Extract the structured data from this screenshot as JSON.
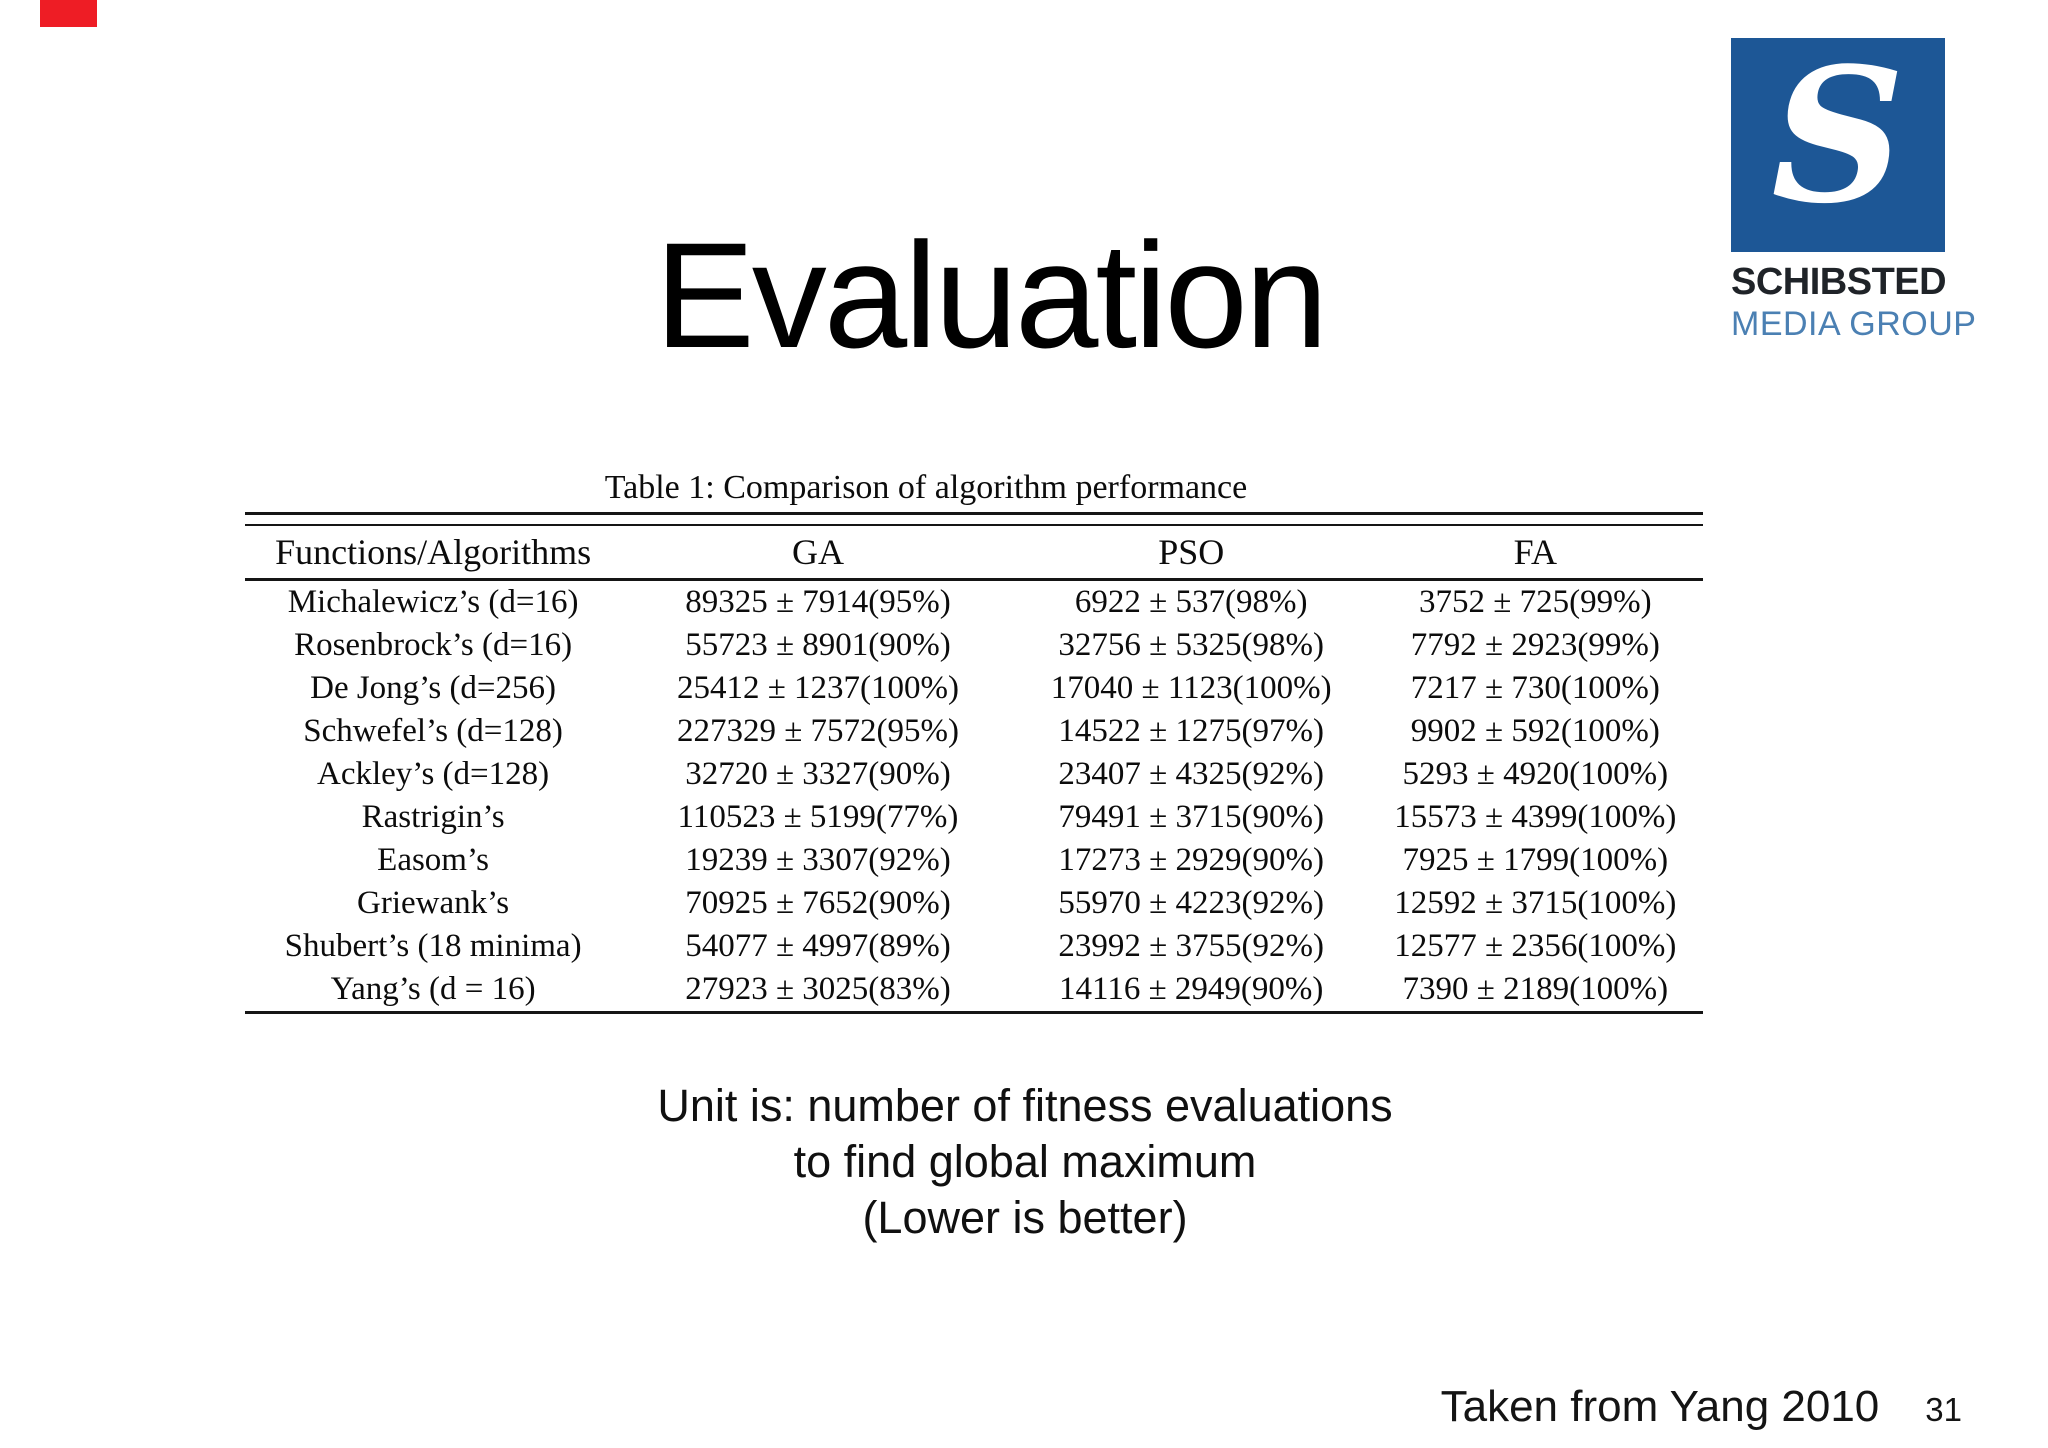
{
  "slide": {
    "title": "Evaluation",
    "attribution": "Taken from Yang 2010",
    "page_number": "31"
  },
  "marker": {
    "color": "#ee1d25"
  },
  "logo": {
    "monogram": "S",
    "name": "SCHIBSTED",
    "subname": "MEDIA GROUP",
    "square_color": "#1d5796",
    "name_color": "#1f2328",
    "subname_color": "#4b80b3"
  },
  "table": {
    "caption": "Table 1: Comparison of algorithm performance",
    "columns": [
      "Functions/Algorithms",
      "GA",
      "PSO",
      "FA"
    ],
    "rows": [
      [
        "Michalewicz’s (d=16)",
        "89325 ± 7914(95%)",
        "6922 ± 537(98%)",
        "3752 ± 725(99%)"
      ],
      [
        "Rosenbrock’s (d=16)",
        "55723 ± 8901(90%)",
        "32756 ± 5325(98%)",
        "7792 ± 2923(99%)"
      ],
      [
        "De Jong’s (d=256)",
        "25412 ± 1237(100%)",
        "17040 ± 1123(100%)",
        "7217 ± 730(100%)"
      ],
      [
        "Schwefel’s (d=128)",
        "227329 ± 7572(95%)",
        "14522 ± 1275(97%)",
        "9902 ± 592(100%)"
      ],
      [
        "Ackley’s (d=128)",
        "32720 ± 3327(90%)",
        "23407 ± 4325(92%)",
        "5293 ± 4920(100%)"
      ],
      [
        "Rastrigin’s",
        "110523 ± 5199(77%)",
        "79491 ± 3715(90%)",
        "15573 ± 4399(100%)"
      ],
      [
        "Easom’s",
        "19239 ± 3307(92%)",
        "17273 ± 2929(90%)",
        "7925 ± 1799(100%)"
      ],
      [
        "Griewank’s",
        "70925 ± 7652(90%)",
        "55970 ± 4223(92%)",
        "12592 ± 3715(100%)"
      ],
      [
        "Shubert’s (18 minima)",
        "54077 ± 4997(89%)",
        "23992 ± 3755(92%)",
        "12577 ± 2356(100%)"
      ],
      [
        "Yang’s (d = 16)",
        "27923 ± 3025(83%)",
        "14116 ± 2949(90%)",
        "7390 ± 2189(100%)"
      ]
    ]
  },
  "note": {
    "line1": "Unit is: number of fitness evaluations",
    "line2": "to find global maximum",
    "line3": "(Lower is better)"
  }
}
